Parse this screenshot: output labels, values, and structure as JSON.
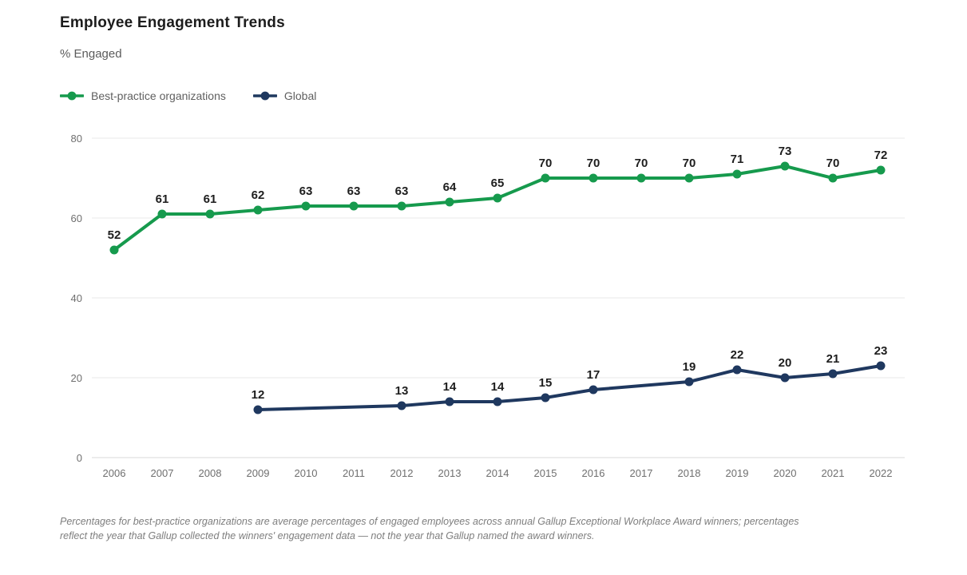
{
  "header": {
    "title": "Employee Engagement Trends",
    "subtitle": "% Engaged"
  },
  "legend": [
    {
      "label": "Best-practice organizations",
      "color": "#169a4d"
    },
    {
      "label": "Global",
      "color": "#1f385f"
    }
  ],
  "chart_data": {
    "type": "line",
    "title": "Employee Engagement Trends",
    "ylabel": "% Engaged",
    "categories": [
      "2006",
      "2007",
      "2008",
      "2009",
      "2010",
      "2011",
      "2012",
      "2013",
      "2014",
      "2015",
      "2016",
      "2017",
      "2018",
      "2019",
      "2020",
      "2021",
      "2022"
    ],
    "series": [
      {
        "name": "Best-practice organizations",
        "color": "#169a4d",
        "values": [
          52,
          61,
          61,
          62,
          63,
          63,
          63,
          64,
          65,
          70,
          70,
          70,
          70,
          71,
          73,
          70,
          72
        ]
      },
      {
        "name": "Global",
        "color": "#1f385f",
        "values": [
          null,
          null,
          null,
          12,
          null,
          null,
          13,
          14,
          14,
          15,
          17,
          null,
          19,
          22,
          20,
          21,
          23
        ]
      }
    ],
    "yticks": [
      0,
      20,
      40,
      60,
      80
    ],
    "ylim": [
      0,
      88
    ],
    "grid": true,
    "legend_position": "top-left",
    "data_labels": true
  },
  "colors": {
    "best_practice": "#169a4d",
    "global": "#1f385f",
    "gridline": "#e9e9e9",
    "axis_text": "#6f6f6f",
    "data_label": "#1e1e1e"
  },
  "footnote": {
    "text": "Percentages for best-practice organizations are average percentages of engaged employees across annual Gallup Exceptional Workplace Award winners; percentages reflect the year that Gallup collected the winners' engagement data — not the year that Gallup named the award winners."
  }
}
